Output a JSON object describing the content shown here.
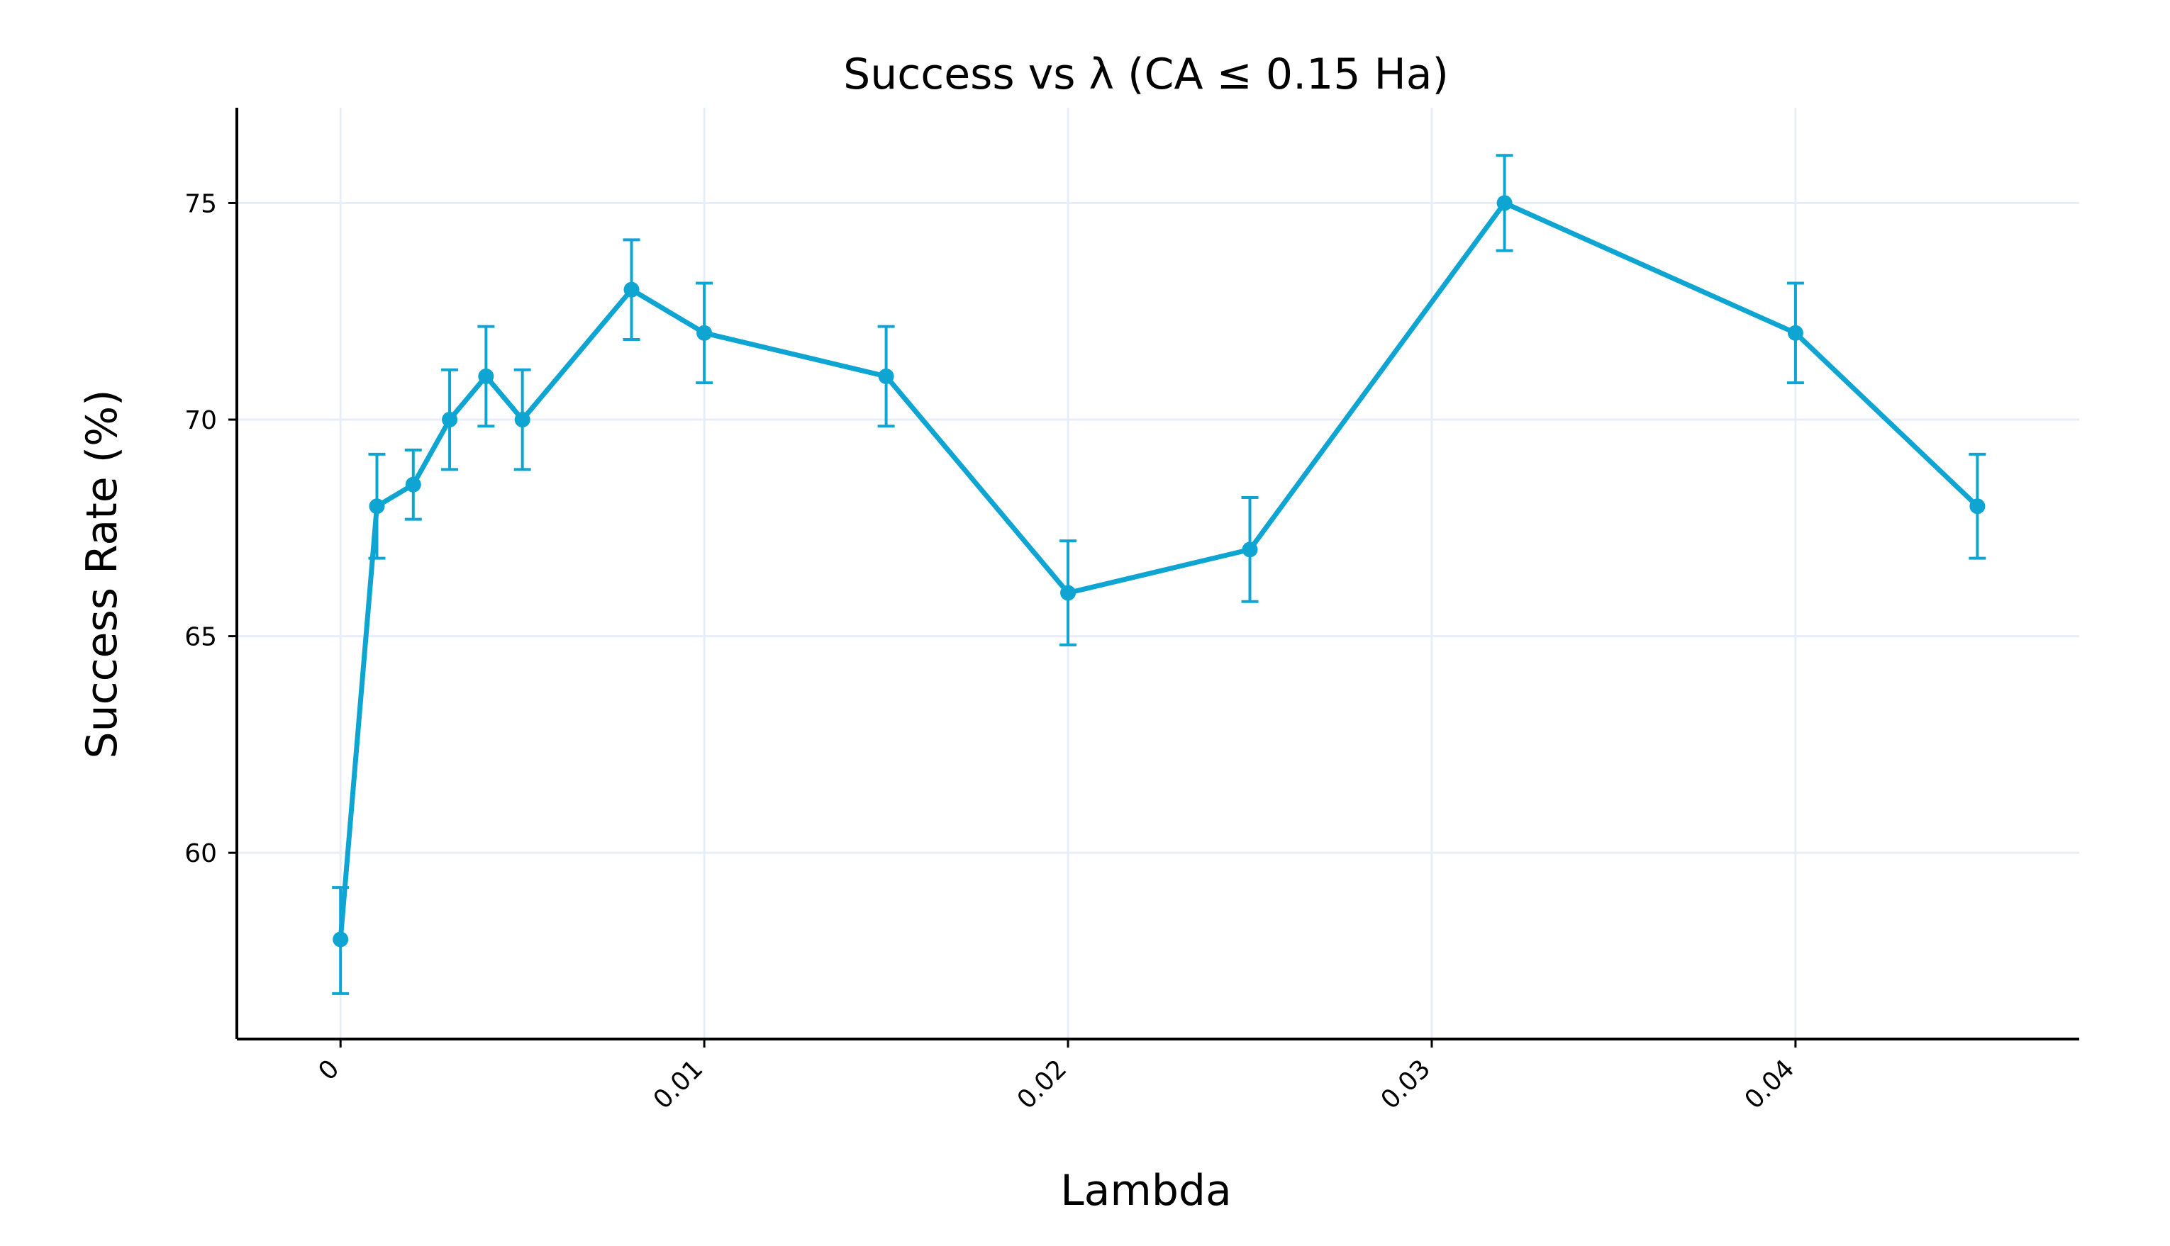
{
  "colors": {
    "series": "#0ea5d3",
    "grid": "#e8eef7",
    "axis": "#000000",
    "text": "#000000",
    "background": "#ffffff"
  },
  "chart_data": {
    "type": "line",
    "title": "Success vs λ (CA ≤ 0.15 Ha)",
    "xlabel": "Lambda",
    "ylabel": "Success Rate (%)",
    "xlim": [
      -0.00285,
      0.0478
    ],
    "ylim": [
      55.7,
      77.2
    ],
    "xticks": [
      0,
      0.01,
      0.02,
      0.03,
      0.04
    ],
    "xtick_labels": [
      "0",
      "0.01",
      "0.02",
      "0.03",
      "0.04"
    ],
    "yticks": [
      60,
      65,
      70,
      75
    ],
    "ytick_labels": [
      "60",
      "65",
      "70",
      "75"
    ],
    "grid": true,
    "series": [
      {
        "name": "Success Rate",
        "x": [
          0,
          0.001,
          0.002,
          0.003,
          0.004,
          0.005,
          0.008,
          0.01,
          0.015,
          0.02,
          0.025,
          0.032,
          0.04,
          0.045
        ],
        "y": [
          58,
          68,
          68.5,
          70,
          71,
          70,
          73,
          72,
          71,
          66,
          67,
          75,
          72,
          68
        ],
        "error_plus": [
          1.2,
          1.2,
          0.8,
          1.15,
          1.15,
          1.15,
          1.15,
          1.15,
          1.15,
          1.2,
          1.2,
          1.1,
          1.15,
          1.2
        ],
        "error_minus": [
          1.25,
          1.2,
          0.8,
          1.15,
          1.15,
          1.15,
          1.15,
          1.15,
          1.15,
          1.2,
          1.2,
          1.1,
          1.15,
          1.2
        ]
      }
    ]
  }
}
